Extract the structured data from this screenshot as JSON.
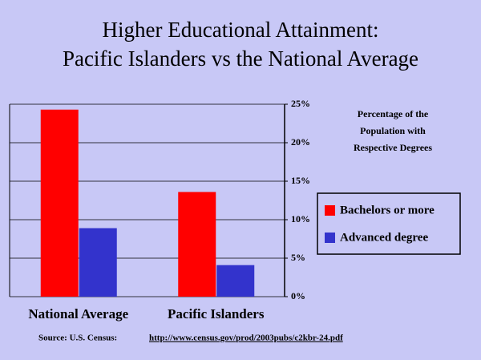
{
  "chart_data": {
    "type": "bar",
    "title": "Higher Educational Attainment:",
    "subtitle": "Pacific Islanders vs the National Average",
    "annotation": [
      "Percentage of the",
      "Population with",
      "Respective Degrees"
    ],
    "categories": [
      "National Average",
      "Pacific Islanders"
    ],
    "series": [
      {
        "name": "Bachelors or more",
        "color": "#ff0000",
        "values": [
          24.3,
          13.6
        ]
      },
      {
        "name": "Advanced degree",
        "color": "#3333cc",
        "values": [
          8.9,
          4.1
        ]
      }
    ],
    "ylim": [
      0,
      25
    ],
    "yticks": [
      {
        "value": 0,
        "label": "0%"
      },
      {
        "value": 5,
        "label": "5%"
      },
      {
        "value": 10,
        "label": "10%"
      },
      {
        "value": 15,
        "label": "15%"
      },
      {
        "value": 20,
        "label": "20%"
      },
      {
        "value": 25,
        "label": "25%"
      }
    ],
    "grid": true,
    "source": "Source: U.S. Census:",
    "source_url": "http://www.census.gov/prod/2003pubs/c2kbr-24.pdf"
  }
}
